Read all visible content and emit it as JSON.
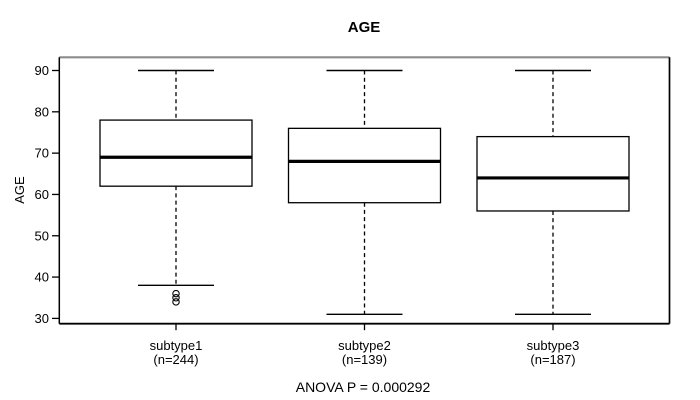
{
  "title": "AGE",
  "footer": "ANOVA P = 0.000292",
  "y_axis": {
    "label": "AGE"
  },
  "colors": {
    "line": "#000000",
    "background": "#ffffff",
    "plot_top_border": "#8c8c8c",
    "box_fill": "#ffffff"
  },
  "chart_data": {
    "type": "boxplot",
    "title": "AGE",
    "ylabel": "AGE",
    "xlabel": "",
    "ylim": [
      30,
      90
    ],
    "y_ticks": [
      30,
      40,
      50,
      60,
      70,
      80,
      90
    ],
    "grid": false,
    "annotation": "ANOVA P = 0.000292",
    "categories": [
      "subtype1",
      "subtype2",
      "subtype3"
    ],
    "category_sublabels": [
      "(n=244)",
      "(n=139)",
      "(n=187)"
    ],
    "series": [
      {
        "name": "subtype1",
        "n": 244,
        "whisker_low": 38,
        "q1": 62,
        "median": 69,
        "q3": 78,
        "whisker_high": 90,
        "outliers": [
          36,
          35,
          34
        ]
      },
      {
        "name": "subtype2",
        "n": 139,
        "whisker_low": 31,
        "q1": 58,
        "median": 68,
        "q3": 76,
        "whisker_high": 90,
        "outliers": []
      },
      {
        "name": "subtype3",
        "n": 187,
        "whisker_low": 31,
        "q1": 56,
        "median": 64,
        "q3": 74,
        "whisker_high": 90,
        "outliers": []
      }
    ]
  }
}
